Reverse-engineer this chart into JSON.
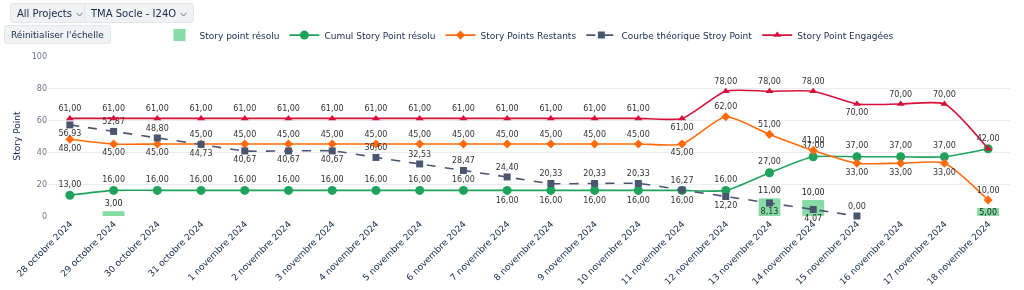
{
  "chart_data": {
    "type": "line",
    "ylabel": "Story Point",
    "annotations": [
      "All Projects",
      "TMA Socle - I24O",
      "Réinitialiser l'échelle"
    ],
    "categories": [
      "28 octobre 2024",
      "29 octobre 2024",
      "30 octobre 2024",
      "31 octobre 2024",
      "1 novembre 2024",
      "2 novembre 2024",
      "3 novembre 2024",
      "4 novembre 2024",
      "5 novembre 2024",
      "6 novembre 2024",
      "7 novembre 2024",
      "8 novembre 2024",
      "9 novembre 2024",
      "10 novembre 2024",
      "11 novembre 2024",
      "12 novembre 2024",
      "13 novembre 2024",
      "14 novembre 2024",
      "15 novembre 2024",
      "16 novembre 2024",
      "17 novembre 2024",
      "18 novembre 2024"
    ],
    "series": [
      {
        "name": "Story point résolu",
        "type": "bar",
        "color": "#86dca4",
        "marker": "square",
        "values": [
          null,
          3,
          null,
          null,
          null,
          null,
          null,
          null,
          null,
          null,
          null,
          null,
          null,
          null,
          null,
          null,
          11,
          10,
          null,
          null,
          null,
          5
        ],
        "value_labels": [
          null,
          "3,00",
          null,
          null,
          null,
          null,
          null,
          null,
          null,
          null,
          null,
          null,
          null,
          null,
          null,
          null,
          "11,00",
          "10,00",
          null,
          null,
          null,
          "5,00"
        ]
      },
      {
        "name": "Cumul Story Point résolu",
        "color": "#1fa35c",
        "marker": "circle",
        "line_style": "solid",
        "values": [
          13,
          16,
          16,
          16,
          16,
          16,
          16,
          16,
          16,
          16,
          16,
          16,
          16,
          16,
          16,
          16,
          27,
          37,
          37,
          37,
          37,
          42
        ],
        "value_labels": [
          "13,00",
          "16,00",
          "16,00",
          "16,00",
          "16,00",
          "16,00",
          "16,00",
          "16,00",
          "16,00",
          "16,00",
          "16,00",
          "16,00",
          "16,00",
          "16,00",
          "16,00",
          "16,00",
          "27,00",
          "37,00",
          "37,00",
          "37,00",
          "37,00",
          null
        ]
      },
      {
        "name": "Story Points Restants",
        "color": "#ff6a0d",
        "marker": "diamond",
        "line_style": "solid",
        "values": [
          48,
          45,
          45,
          45,
          45,
          45,
          45,
          45,
          45,
          45,
          45,
          45,
          45,
          45,
          45,
          62,
          51,
          41,
          33,
          33,
          33,
          10
        ],
        "value_labels": [
          "48,00",
          "45,00",
          "45,00",
          "45,00",
          "45,00",
          "45,00",
          "45,00",
          "45,00",
          "45,00",
          "45,00",
          "45,00",
          "45,00",
          "45,00",
          "45,00",
          "45,00",
          "62,00",
          "51,00",
          "41,00",
          "33,00",
          "33,00",
          "33,00",
          "10,00"
        ]
      },
      {
        "name": "Courbe théorique Stroy Point",
        "color": "#4a5670",
        "marker": "square",
        "line_style": "dashed",
        "values": [
          56.93,
          52.87,
          48.8,
          44.73,
          40.67,
          40.67,
          40.67,
          36.6,
          32.53,
          28.47,
          24.4,
          20.33,
          20.33,
          20.33,
          16.27,
          12.2,
          8.13,
          4.07,
          0.0,
          null,
          null,
          null
        ],
        "value_labels": [
          "56,93",
          "52,87",
          "48,80",
          "44,73",
          "40,67",
          "40,67",
          "40,67",
          "36,60",
          "32,53",
          "28,47",
          "24,40",
          "20,33",
          "20,33",
          "20,33",
          "16,27",
          "12,20",
          "8,13",
          "4,07",
          "0,00",
          null,
          null,
          null
        ]
      },
      {
        "name": "Story Point Engagées",
        "color": "#d6103a",
        "marker": "triangle",
        "line_style": "solid",
        "values": [
          61,
          61,
          61,
          61,
          61,
          61,
          61,
          61,
          61,
          61,
          61,
          61,
          61,
          61,
          61,
          78,
          78,
          78,
          70,
          70,
          70,
          42
        ],
        "value_labels": [
          "61,00",
          "61,00",
          "61,00",
          "61,00",
          "61,00",
          "61,00",
          "61,00",
          "61,00",
          "61,00",
          "61,00",
          "61,00",
          "61,00",
          "61,00",
          "61,00",
          "61,00",
          "78,00",
          "78,00",
          "78,00",
          "70,00",
          "70,00",
          "70,00",
          "42,00"
        ]
      }
    ],
    "ylim": [
      0,
      100
    ],
    "yticks": [
      0,
      20,
      40,
      60,
      80,
      100
    ],
    "grid": "y",
    "legend": "top"
  }
}
